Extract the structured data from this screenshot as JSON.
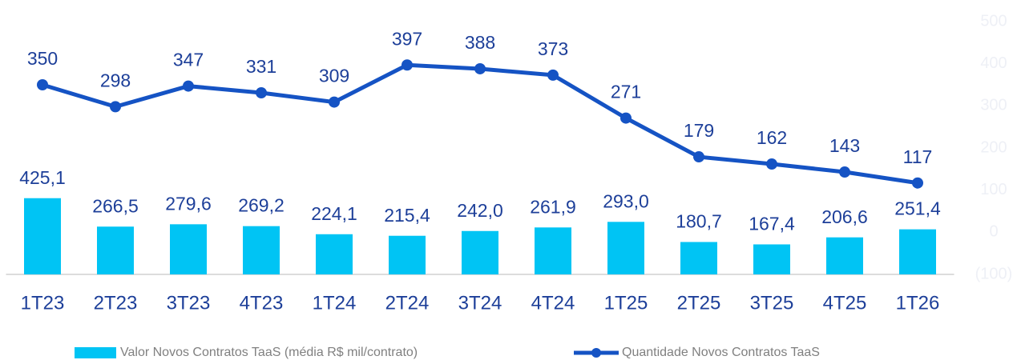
{
  "chart_data": {
    "type": "bar_line",
    "categories": [
      "1T23",
      "2T23",
      "3T23",
      "4T23",
      "1T24",
      "2T24",
      "3T24",
      "4T24",
      "1T25",
      "2T25",
      "3T25",
      "4T25",
      "1T26"
    ],
    "series": [
      {
        "name": "Valor Novos Contratos TaaS (média R$ mil/contrato)",
        "type": "bar",
        "color": "#00c4f4",
        "values": [
          425.1,
          266.5,
          279.6,
          269.2,
          224.1,
          215.4,
          242.0,
          261.9,
          293.0,
          180.7,
          167.4,
          206.6,
          251.4
        ],
        "value_labels": [
          "425,1",
          "266,5",
          "279,6",
          "269,2",
          "224,1",
          "215,4",
          "242,0",
          "261,9",
          "293,0",
          "180,7",
          "167,4",
          "206,6",
          "251,4"
        ]
      },
      {
        "name": "Quantidade Novos Contratos TaaS",
        "type": "line",
        "axis": "y2",
        "color": "#1553c4",
        "values": [
          350,
          298,
          347,
          331,
          309,
          397,
          388,
          373,
          271,
          179,
          162,
          143,
          117
        ]
      }
    ],
    "ylim": [
      0,
      1410
    ],
    "y2lim": [
      -100,
      500
    ],
    "y2ticks": [
      500,
      400,
      300,
      200,
      100,
      0,
      {
        "value": -100,
        "label": "(100)"
      }
    ],
    "legend": "bottom"
  }
}
